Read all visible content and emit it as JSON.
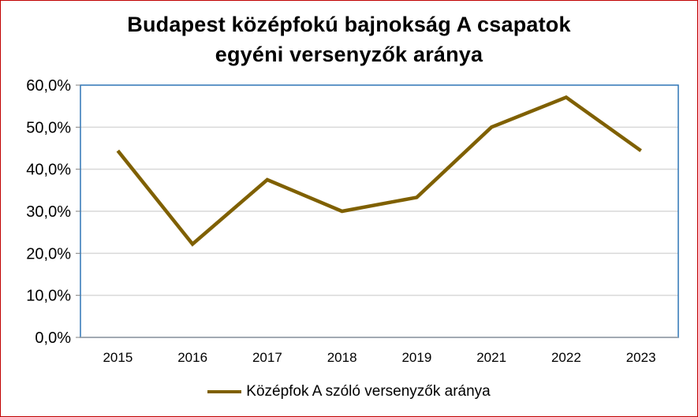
{
  "chart_data": {
    "type": "line",
    "title": [
      "Budapest középfokú bajnokság A csapatok",
      "egyéni versenyzők aránya"
    ],
    "categories": [
      "2015",
      "2016",
      "2017",
      "2018",
      "2019",
      "2021",
      "2022",
      "2023"
    ],
    "y_tick_labels": [
      "0,0%",
      "10,0%",
      "20,0%",
      "30,0%",
      "40,0%",
      "50,0%",
      "60,0%"
    ],
    "y_ticks": [
      0,
      10,
      20,
      30,
      40,
      50,
      60
    ],
    "ylim": [
      0,
      60
    ],
    "grid": true,
    "legend_position": "bottom",
    "series": [
      {
        "name": "Középfok A szóló versenyzők aránya",
        "color": "#7f6000",
        "values": [
          44.4,
          22.2,
          37.5,
          30.0,
          33.3,
          50.0,
          57.1,
          44.4
        ]
      }
    ],
    "plot_border_color": "#2e75b6",
    "grid_color": "#d9d9d9"
  }
}
